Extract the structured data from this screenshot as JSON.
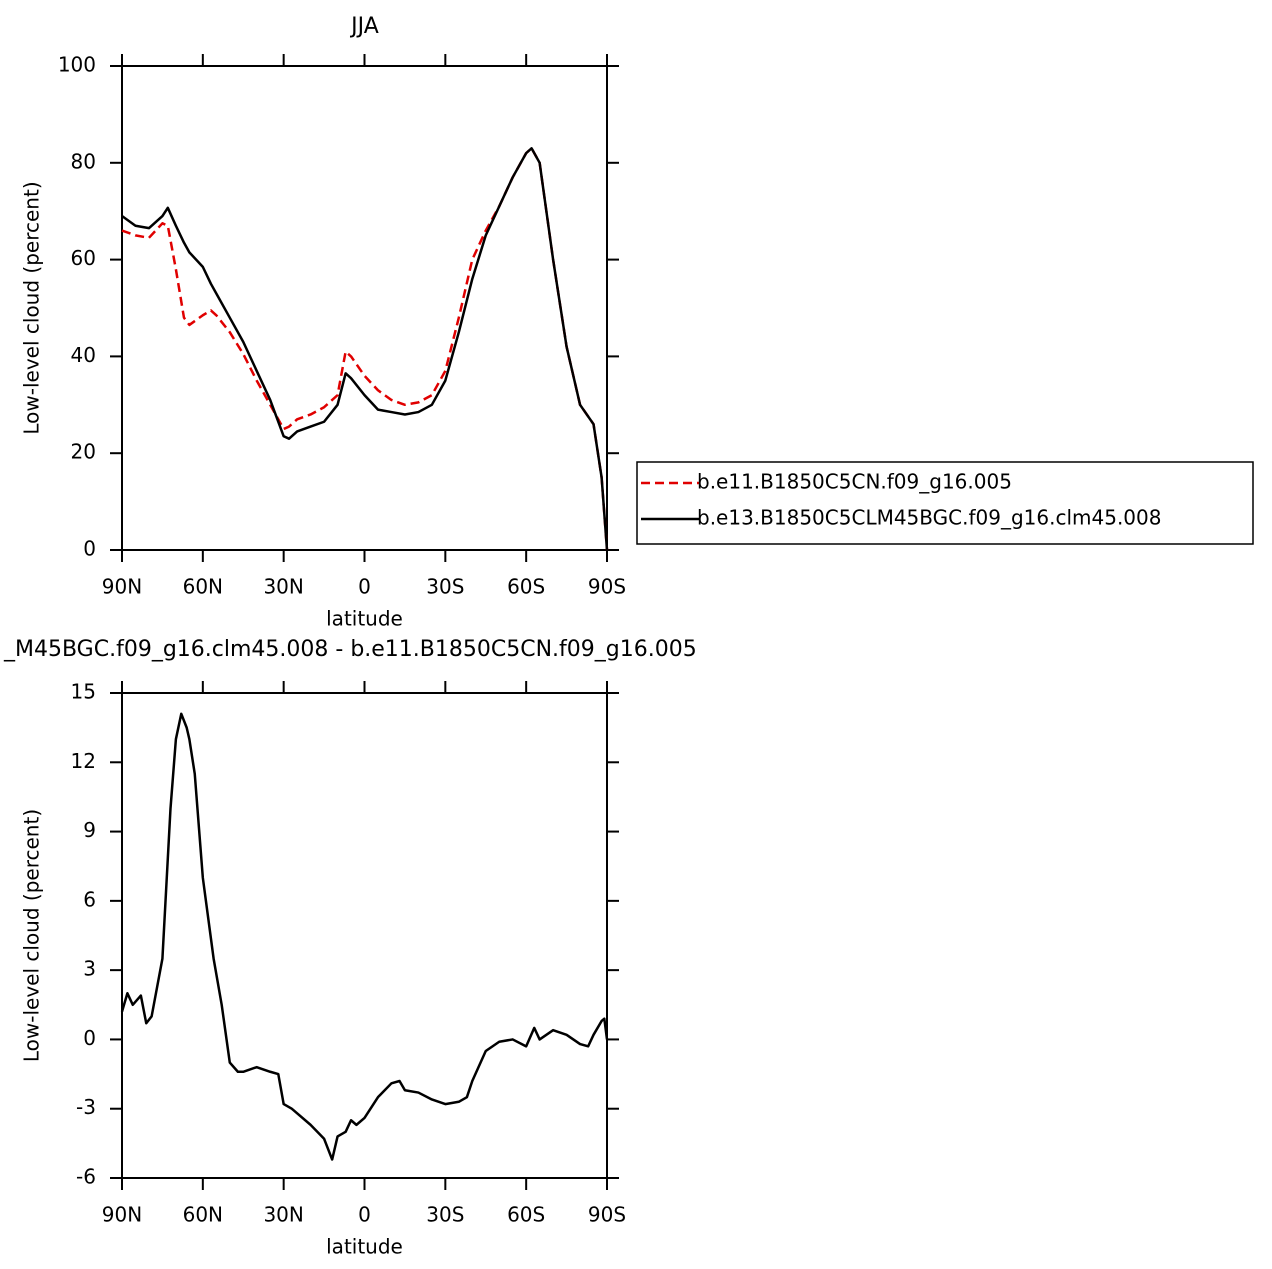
{
  "chart_data": [
    {
      "type": "line",
      "title": "JJA",
      "x_label": "latitude",
      "y_label": "Low-level cloud (percent)",
      "x": [
        90,
        85,
        80,
        75,
        73,
        70,
        67,
        65,
        60,
        57,
        55,
        50,
        45,
        40,
        35,
        30,
        28,
        25,
        20,
        15,
        10,
        7,
        5,
        0,
        -5,
        -10,
        -15,
        -20,
        -25,
        -30,
        -35,
        -40,
        -45,
        -50,
        -55,
        -60,
        -62,
        -65,
        -70,
        -75,
        -80,
        -85,
        -88,
        -90
      ],
      "series": [
        {
          "name": "b.e11.B1850C5CN.f09_g16.005",
          "color": "#e00000",
          "line_style": "dashed",
          "values": [
            66,
            65,
            64.5,
            67.5,
            67,
            58,
            48,
            46.5,
            48.5,
            49.5,
            48.5,
            45,
            40.5,
            35,
            30,
            25,
            25.5,
            27,
            28,
            29.5,
            32,
            41,
            40,
            36,
            33,
            31,
            30,
            30.5,
            32,
            37,
            48,
            60,
            66,
            71,
            77,
            82,
            83,
            80,
            60,
            42,
            30,
            26,
            15,
            0
          ]
        },
        {
          "name": "b.e13.B1850C5CLM45BGC.f09_g16.clm45.008",
          "color": "#000000",
          "line_style": "solid",
          "values": [
            69,
            67,
            66.5,
            69,
            70.7,
            67,
            63.5,
            61.5,
            58.5,
            55,
            53,
            48,
            43,
            37,
            31,
            23.5,
            23,
            24.5,
            25.5,
            26.5,
            30,
            36.5,
            35.5,
            32,
            29,
            28.5,
            28,
            28.5,
            30,
            35,
            45,
            56,
            65,
            71,
            77,
            82,
            83,
            80,
            60,
            42,
            30,
            26,
            15,
            0
          ]
        }
      ],
      "xlim": [
        90,
        -90
      ],
      "xticks": [
        {
          "value": 90,
          "label": "90N"
        },
        {
          "value": 60,
          "label": "60N"
        },
        {
          "value": 30,
          "label": "30N"
        },
        0,
        {
          "value": -30,
          "label": "30S"
        },
        {
          "value": -60,
          "label": "60S"
        },
        {
          "value": -90,
          "label": "90S"
        }
      ],
      "ylim": [
        0,
        100
      ],
      "yticks": [
        0,
        20,
        40,
        60,
        80,
        100
      ],
      "legend": "right"
    },
    {
      "type": "line",
      "title": "_M45BGC.f09_g16.clm45.008 - b.e11.B1850C5CN.f09_g16.005",
      "x_label": "latitude",
      "y_label": "Low-level cloud (percent)",
      "x": [
        90,
        88,
        86,
        83,
        81,
        79,
        75,
        72,
        70,
        68,
        66,
        65,
        63,
        60,
        56,
        53,
        50,
        47,
        45,
        40,
        35,
        32,
        30,
        27,
        25,
        20,
        15,
        12,
        10,
        7,
        5,
        3,
        0,
        -5,
        -10,
        -13,
        -15,
        -20,
        -25,
        -30,
        -35,
        -38,
        -40,
        -45,
        -50,
        -55,
        -60,
        -63,
        -65,
        -70,
        -75,
        -80,
        -83,
        -85,
        -88,
        -89,
        -90
      ],
      "series": [
        {
          "color": "#000000",
          "line_style": "solid",
          "values": [
            1.2,
            2,
            1.5,
            1.9,
            0.7,
            1,
            3.5,
            10,
            13,
            14.1,
            13.5,
            13,
            11.5,
            7,
            3.5,
            1.5,
            -1,
            -1.4,
            -1.4,
            -1.2,
            -1.4,
            -1.5,
            -2.8,
            -3,
            -3.2,
            -3.7,
            -4.3,
            -5.2,
            -4.2,
            -4,
            -3.5,
            -3.7,
            -3.4,
            -2.5,
            -1.9,
            -1.8,
            -2.2,
            -2.3,
            -2.6,
            -2.8,
            -2.7,
            -2.5,
            -1.8,
            -0.5,
            -0.1,
            0,
            -0.3,
            0.5,
            0,
            0.4,
            0.2,
            -0.2,
            -0.3,
            0.2,
            0.8,
            0.9,
            0
          ]
        }
      ],
      "xlim": [
        90,
        -90
      ],
      "xticks": [
        {
          "value": 90,
          "label": "90N"
        },
        {
          "value": 60,
          "label": "60N"
        },
        {
          "value": 30,
          "label": "30N"
        },
        0,
        {
          "value": -30,
          "label": "30S"
        },
        {
          "value": -60,
          "label": "60S"
        },
        {
          "value": -90,
          "label": "90S"
        }
      ],
      "ylim": [
        -6,
        15
      ],
      "yticks": [
        -6,
        -3,
        0,
        3,
        6,
        9,
        12,
        15
      ]
    }
  ]
}
